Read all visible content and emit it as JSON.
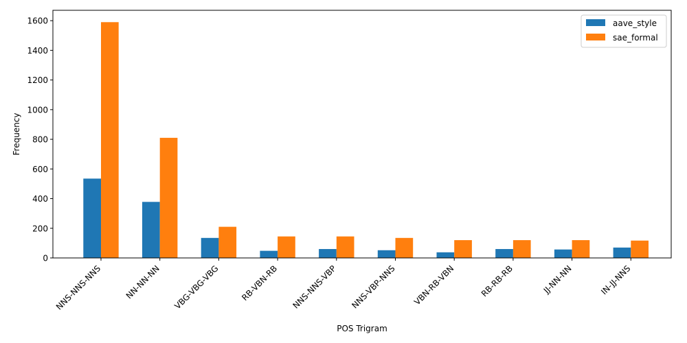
{
  "chart_data": {
    "type": "bar",
    "title": "",
    "xlabel": "POS Trigram",
    "ylabel": "Frequency",
    "categories": [
      "NNS-NNS-NNS",
      "NN-NN-NN",
      "VBG-VBG-VBG",
      "RB-VBN-RB",
      "NNS-NNS-VBP",
      "NNS-VBP-NNS",
      "VBN-RB-VBN",
      "RB-RB-RB",
      "JJ-NN-NN",
      "IN-JJ-NNS"
    ],
    "series": [
      {
        "name": "aave_style",
        "color": "#1f77b4",
        "values": [
          535,
          378,
          135,
          48,
          60,
          52,
          38,
          60,
          57,
          70
        ]
      },
      {
        "name": "sae_formal",
        "color": "#ff7f0e",
        "values": [
          1590,
          810,
          210,
          145,
          145,
          135,
          120,
          120,
          120,
          117
        ]
      }
    ],
    "ylim": [
      0,
      1670
    ],
    "yticks": [
      0,
      200,
      400,
      600,
      800,
      1000,
      1200,
      1400,
      1600
    ],
    "legend_position": "top-right",
    "grid": false
  }
}
